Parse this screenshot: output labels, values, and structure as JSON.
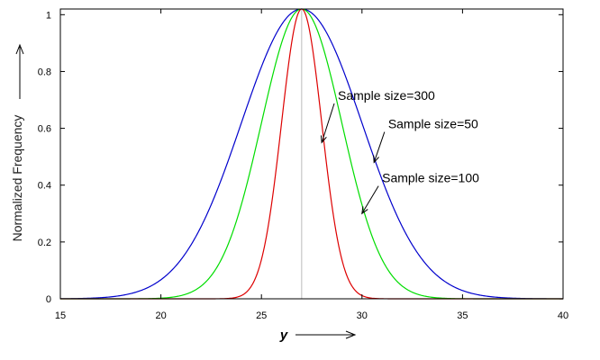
{
  "chart_data": {
    "type": "line",
    "title": "",
    "xlabel": "y",
    "ylabel": "Normalized Frequency",
    "xlim": [
      15,
      40
    ],
    "ylim": [
      0,
      1.02
    ],
    "xticks": [
      15,
      20,
      25,
      30,
      35,
      40
    ],
    "yticks": [
      0,
      0.2,
      0.4,
      0.6,
      0.8,
      1
    ],
    "reference_line_x": 27,
    "grid": false,
    "series": [
      {
        "color": "#0000cc",
        "center": 27,
        "sigma": 3.0,
        "peak": 1.02
      },
      {
        "color": "#00dd00",
        "center": 27,
        "sigma": 2.0,
        "peak": 1.02
      },
      {
        "color": "#dd0000",
        "center": 27,
        "sigma": 1.0,
        "peak": 1.02
      }
    ],
    "annotations": [
      {
        "text": "Sample size=300",
        "x": 28.8,
        "y": 0.7,
        "arrow_to": [
          28.0,
          0.55
        ]
      },
      {
        "text": "Sample size=50",
        "x": 31.3,
        "y": 0.6,
        "arrow_to": [
          30.6,
          0.48
        ]
      },
      {
        "text": "Sample size=100",
        "x": 31.0,
        "y": 0.41,
        "arrow_to": [
          30.0,
          0.3
        ]
      }
    ]
  }
}
